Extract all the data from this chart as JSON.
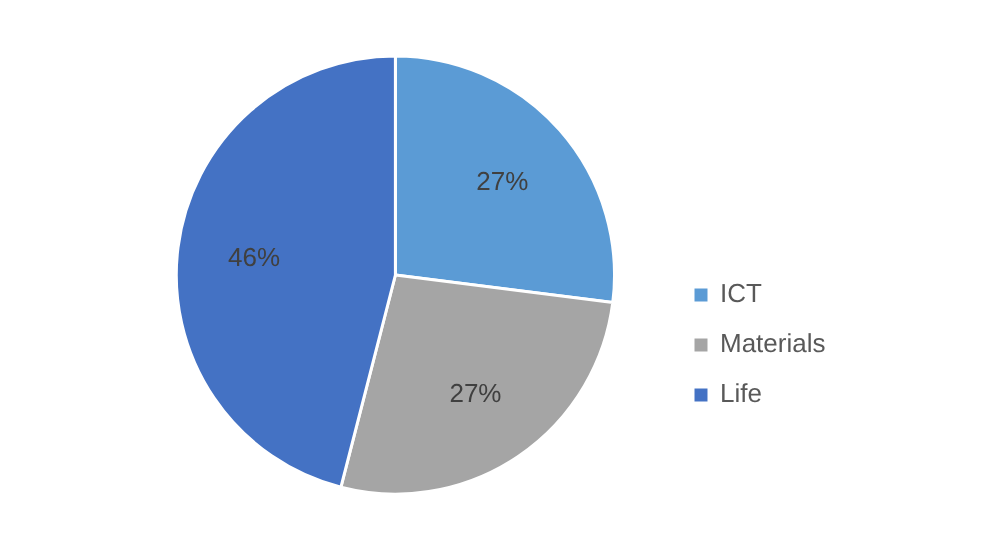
{
  "chart_data": {
    "type": "pie",
    "categories": [
      "ICT",
      "Materials",
      "Life"
    ],
    "values": [
      27,
      27,
      46
    ],
    "colors": [
      "#5b9bd5",
      "#a5a5a5",
      "#4472c4"
    ],
    "value_labels": [
      "27%",
      "27%",
      "46%"
    ],
    "legend": "right"
  }
}
